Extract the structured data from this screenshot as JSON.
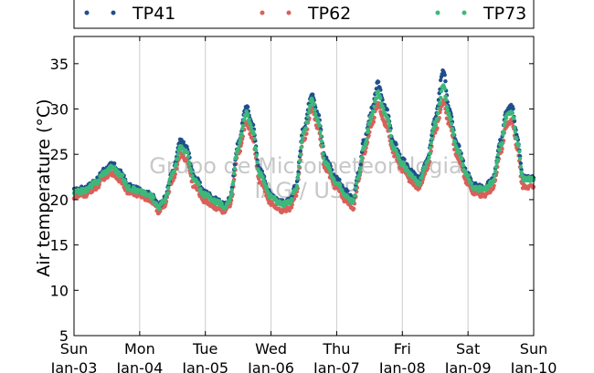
{
  "chart_data": {
    "type": "scatter",
    "title": "",
    "xlabel": "",
    "ylabel": "Air temperature (°C)",
    "ylim": [
      5,
      38
    ],
    "xlim": [
      "2016-01-03 00:00",
      "2016-01-10 00:00"
    ],
    "yticks": [
      5,
      10,
      15,
      20,
      25,
      30,
      35
    ],
    "xticks": [
      {
        "day": "Sun",
        "date": "Jan-03"
      },
      {
        "day": "Mon",
        "date": "Jan-04"
      },
      {
        "day": "Tue",
        "date": "Jan-05"
      },
      {
        "day": "Wed",
        "date": "Jan-06"
      },
      {
        "day": "Thu",
        "date": "Jan-07"
      },
      {
        "day": "Fri",
        "date": "Jan-08"
      },
      {
        "day": "Sat",
        "date": "Jan-09"
      },
      {
        "day": "Sun",
        "date": "Jan-10"
      }
    ],
    "grid": "vertical",
    "legend_position": "top",
    "watermark": [
      "Grupo de Micrometeorologia",
      "IAG / USP"
    ],
    "series": [
      {
        "name": "TP41",
        "color": "#1f4e8c",
        "points": [
          [
            "2016-01-03 00:00",
            21.0
          ],
          [
            "2016-01-03 04:00",
            21.3
          ],
          [
            "2016-01-03 08:00",
            22.1
          ],
          [
            "2016-01-03 11:00",
            23.3
          ],
          [
            "2016-01-03 14:00",
            23.9
          ],
          [
            "2016-01-03 17:00",
            23.0
          ],
          [
            "2016-01-03 20:00",
            21.5
          ],
          [
            "2016-01-04 00:00",
            21.1
          ],
          [
            "2016-01-04 04:00",
            20.6
          ],
          [
            "2016-01-04 07:00",
            19.4
          ],
          [
            "2016-01-04 09:00",
            20.1
          ],
          [
            "2016-01-04 12:00",
            23.0
          ],
          [
            "2016-01-04 15:00",
            26.5
          ],
          [
            "2016-01-04 17:00",
            25.8
          ],
          [
            "2016-01-04 20:00",
            22.5
          ],
          [
            "2016-01-05 00:00",
            20.8
          ],
          [
            "2016-01-05 04:00",
            20.0
          ],
          [
            "2016-01-05 07:00",
            19.4
          ],
          [
            "2016-01-05 09:00",
            20.2
          ],
          [
            "2016-01-05 12:00",
            26.2
          ],
          [
            "2016-01-05 15:00",
            30.3
          ],
          [
            "2016-01-05 17:00",
            28.5
          ],
          [
            "2016-01-05 20:00",
            23.2
          ],
          [
            "2016-01-06 00:00",
            20.6
          ],
          [
            "2016-01-06 04:00",
            19.7
          ],
          [
            "2016-01-06 07:00",
            19.9
          ],
          [
            "2016-01-06 09:00",
            21.5
          ],
          [
            "2016-01-06 12:00",
            28.0
          ],
          [
            "2016-01-06 15:00",
            31.8
          ],
          [
            "2016-01-06 17:00",
            29.5
          ],
          [
            "2016-01-06 20:00",
            24.5
          ],
          [
            "2016-01-07 00:00",
            22.3
          ],
          [
            "2016-01-07 03:00",
            21.0
          ],
          [
            "2016-01-07 06:00",
            20.1
          ],
          [
            "2016-01-07 08:00",
            23.0
          ],
          [
            "2016-01-07 10:00",
            26.5
          ],
          [
            "2016-01-07 13:00",
            30.0
          ],
          [
            "2016-01-07 15:00",
            32.8
          ],
          [
            "2016-01-07 18:00",
            30.0
          ],
          [
            "2016-01-07 21:00",
            26.2
          ],
          [
            "2016-01-08 00:00",
            24.4
          ],
          [
            "2016-01-08 03:00",
            23.2
          ],
          [
            "2016-01-08 06:00",
            22.3
          ],
          [
            "2016-01-08 09:00",
            24.5
          ],
          [
            "2016-01-08 12:00",
            29.0
          ],
          [
            "2016-01-08 15:00",
            34.4
          ],
          [
            "2016-01-08 17:00",
            30.0
          ],
          [
            "2016-01-08 20:00",
            26.0
          ],
          [
            "2016-01-09 00:00",
            22.8
          ],
          [
            "2016-01-09 02:00",
            21.6
          ],
          [
            "2016-01-09 06:00",
            21.4
          ],
          [
            "2016-01-09 09:00",
            22.2
          ],
          [
            "2016-01-09 12:00",
            26.5
          ],
          [
            "2016-01-09 14:00",
            29.7
          ],
          [
            "2016-01-09 16:00",
            30.3
          ],
          [
            "2016-01-09 18:00",
            27.0
          ],
          [
            "2016-01-09 20:00",
            22.5
          ],
          [
            "2016-01-10 00:00",
            22.4
          ]
        ]
      },
      {
        "name": "TP62",
        "color": "#d9605a",
        "points": [
          [
            "2016-01-03 00:00",
            20.3
          ],
          [
            "2016-01-03 04:00",
            20.5
          ],
          [
            "2016-01-03 08:00",
            21.3
          ],
          [
            "2016-01-03 11:00",
            22.4
          ],
          [
            "2016-01-03 14:00",
            22.9
          ],
          [
            "2016-01-03 17:00",
            22.1
          ],
          [
            "2016-01-03 20:00",
            20.8
          ],
          [
            "2016-01-04 00:00",
            20.5
          ],
          [
            "2016-01-04 04:00",
            19.9
          ],
          [
            "2016-01-04 07:00",
            18.7
          ],
          [
            "2016-01-04 09:00",
            19.3
          ],
          [
            "2016-01-04 12:00",
            22.2
          ],
          [
            "2016-01-04 15:00",
            25.0
          ],
          [
            "2016-01-04 17:00",
            24.4
          ],
          [
            "2016-01-04 20:00",
            21.4
          ],
          [
            "2016-01-05 00:00",
            19.8
          ],
          [
            "2016-01-05 04:00",
            19.1
          ],
          [
            "2016-01-05 07:00",
            18.6
          ],
          [
            "2016-01-05 09:00",
            19.3
          ],
          [
            "2016-01-05 12:00",
            25.0
          ],
          [
            "2016-01-05 15:00",
            28.5
          ],
          [
            "2016-01-05 17:00",
            27.0
          ],
          [
            "2016-01-05 20:00",
            22.0
          ],
          [
            "2016-01-06 00:00",
            19.6
          ],
          [
            "2016-01-06 04:00",
            18.8
          ],
          [
            "2016-01-06 07:00",
            19.0
          ],
          [
            "2016-01-06 09:00",
            20.5
          ],
          [
            "2016-01-06 12:00",
            26.6
          ],
          [
            "2016-01-06 15:00",
            30.0
          ],
          [
            "2016-01-06 17:00",
            28.0
          ],
          [
            "2016-01-06 20:00",
            23.3
          ],
          [
            "2016-01-07 00:00",
            21.3
          ],
          [
            "2016-01-07 03:00",
            20.0
          ],
          [
            "2016-01-07 06:00",
            19.1
          ],
          [
            "2016-01-07 08:00",
            22.0
          ],
          [
            "2016-01-07 10:00",
            25.2
          ],
          [
            "2016-01-07 13:00",
            28.5
          ],
          [
            "2016-01-07 15:00",
            30.5
          ],
          [
            "2016-01-07 18:00",
            28.3
          ],
          [
            "2016-01-07 21:00",
            25.0
          ],
          [
            "2016-01-08 00:00",
            23.3
          ],
          [
            "2016-01-08 03:00",
            22.1
          ],
          [
            "2016-01-08 06:00",
            21.2
          ],
          [
            "2016-01-08 09:00",
            23.3
          ],
          [
            "2016-01-08 12:00",
            27.6
          ],
          [
            "2016-01-08 15:00",
            30.8
          ],
          [
            "2016-01-08 17:00",
            28.5
          ],
          [
            "2016-01-08 20:00",
            24.8
          ],
          [
            "2016-01-09 00:00",
            21.8
          ],
          [
            "2016-01-09 02:00",
            20.7
          ],
          [
            "2016-01-09 06:00",
            20.4
          ],
          [
            "2016-01-09 09:00",
            21.2
          ],
          [
            "2016-01-09 12:00",
            25.3
          ],
          [
            "2016-01-09 14:00",
            28.2
          ],
          [
            "2016-01-09 16:00",
            28.8
          ],
          [
            "2016-01-09 18:00",
            25.5
          ],
          [
            "2016-01-09 20:00",
            21.5
          ],
          [
            "2016-01-10 00:00",
            21.4
          ]
        ]
      },
      {
        "name": "TP73",
        "color": "#3db87a",
        "points": [
          [
            "2016-01-03 00:00",
            20.8
          ],
          [
            "2016-01-03 04:00",
            21.0
          ],
          [
            "2016-01-03 08:00",
            21.9
          ],
          [
            "2016-01-03 11:00",
            23.0
          ],
          [
            "2016-01-03 14:00",
            23.6
          ],
          [
            "2016-01-03 17:00",
            22.7
          ],
          [
            "2016-01-03 20:00",
            21.3
          ],
          [
            "2016-01-04 00:00",
            20.9
          ],
          [
            "2016-01-04 04:00",
            20.4
          ],
          [
            "2016-01-04 07:00",
            19.2
          ],
          [
            "2016-01-04 09:00",
            19.9
          ],
          [
            "2016-01-04 12:00",
            22.8
          ],
          [
            "2016-01-04 15:00",
            25.8
          ],
          [
            "2016-01-04 17:00",
            25.2
          ],
          [
            "2016-01-04 20:00",
            22.1
          ],
          [
            "2016-01-05 00:00",
            20.5
          ],
          [
            "2016-01-05 04:00",
            19.8
          ],
          [
            "2016-01-05 07:00",
            19.2
          ],
          [
            "2016-01-05 09:00",
            20.0
          ],
          [
            "2016-01-05 12:00",
            25.8
          ],
          [
            "2016-01-05 15:00",
            29.5
          ],
          [
            "2016-01-05 17:00",
            27.8
          ],
          [
            "2016-01-05 20:00",
            22.8
          ],
          [
            "2016-01-06 00:00",
            20.3
          ],
          [
            "2016-01-06 04:00",
            19.5
          ],
          [
            "2016-01-06 07:00",
            19.7
          ],
          [
            "2016-01-06 09:00",
            21.2
          ],
          [
            "2016-01-06 12:00",
            27.5
          ],
          [
            "2016-01-06 15:00",
            31.0
          ],
          [
            "2016-01-06 17:00",
            28.9
          ],
          [
            "2016-01-06 20:00",
            24.0
          ],
          [
            "2016-01-07 00:00",
            21.9
          ],
          [
            "2016-01-07 03:00",
            20.6
          ],
          [
            "2016-01-07 06:00",
            19.8
          ],
          [
            "2016-01-07 08:00",
            22.6
          ],
          [
            "2016-01-07 10:00",
            26.0
          ],
          [
            "2016-01-07 13:00",
            29.4
          ],
          [
            "2016-01-07 15:00",
            31.8
          ],
          [
            "2016-01-07 18:00",
            29.3
          ],
          [
            "2016-01-07 21:00",
            25.7
          ],
          [
            "2016-01-08 00:00",
            23.9
          ],
          [
            "2016-01-08 03:00",
            22.7
          ],
          [
            "2016-01-08 06:00",
            21.8
          ],
          [
            "2016-01-08 09:00",
            24.0
          ],
          [
            "2016-01-08 12:00",
            28.4
          ],
          [
            "2016-01-08 15:00",
            32.5
          ],
          [
            "2016-01-08 17:00",
            29.4
          ],
          [
            "2016-01-08 20:00",
            25.5
          ],
          [
            "2016-01-09 00:00",
            22.5
          ],
          [
            "2016-01-09 02:00",
            21.3
          ],
          [
            "2016-01-09 06:00",
            21.1
          ],
          [
            "2016-01-09 09:00",
            21.9
          ],
          [
            "2016-01-09 12:00",
            26.0
          ],
          [
            "2016-01-09 14:00",
            29.2
          ],
          [
            "2016-01-09 16:00",
            29.8
          ],
          [
            "2016-01-09 18:00",
            26.4
          ],
          [
            "2016-01-09 20:00",
            22.3
          ],
          [
            "2016-01-10 00:00",
            22.2
          ]
        ]
      }
    ]
  }
}
